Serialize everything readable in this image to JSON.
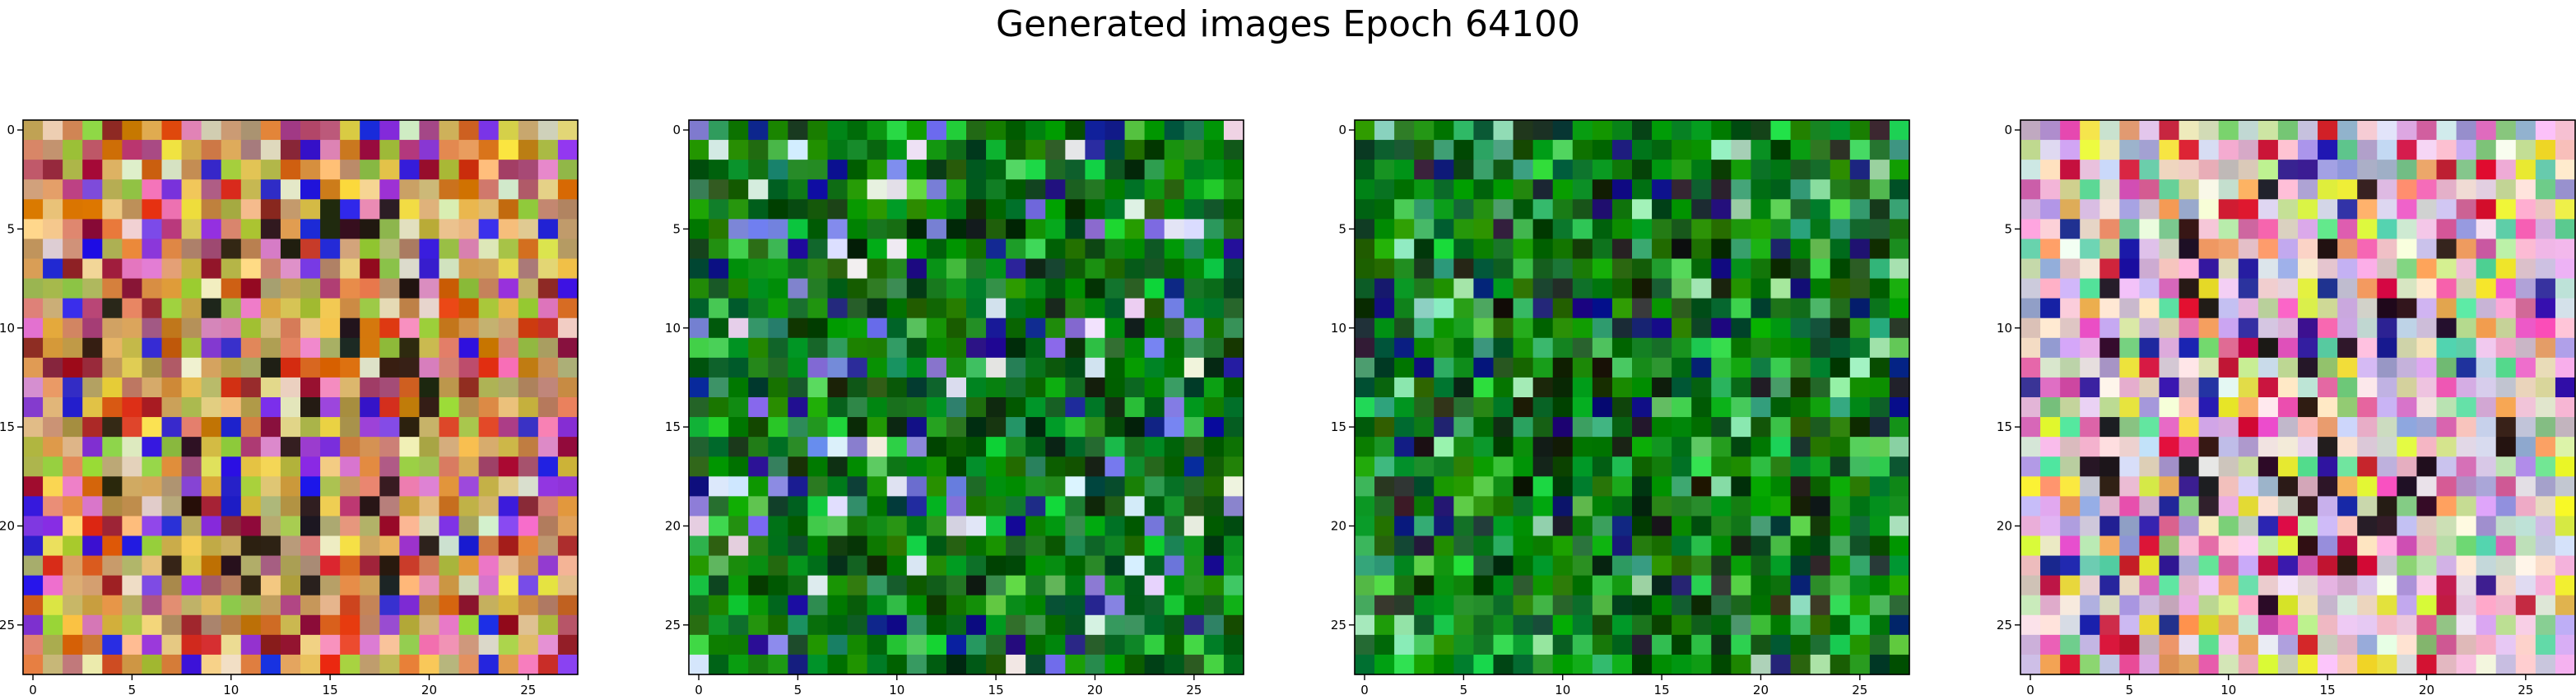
{
  "title": "Generated images Epoch 64100",
  "chart_data": {
    "type": "heatmap",
    "title": "Generated images Epoch 64100",
    "grid": false,
    "image_size": 28,
    "xticks": [
      0,
      5,
      10,
      15,
      20,
      25
    ],
    "yticks": [
      0,
      5,
      10,
      15,
      20,
      25
    ],
    "xlim": [
      -0.5,
      27.5
    ],
    "ylim": [
      27.5,
      -0.5
    ],
    "images": [
      {
        "base_color": "#c89a5a",
        "dark_color": "#1a0e08",
        "accent_colors": [
          "#e8d24a",
          "#d83a20",
          "#cc6a10",
          "#9a1a2a",
          "#e880c0",
          "#8a3ae0",
          "#2a20d8",
          "#f0c888",
          "#9ac840",
          "#e0e0c0",
          "#b04a78"
        ]
      },
      {
        "base_color": "#0a7a0a",
        "dark_color": "#001800",
        "accent_colors": [
          "#12a012",
          "#056005",
          "#1ec63a",
          "#0a4a2a",
          "#2a8a5a",
          "#1a1a90",
          "#7a7ae0",
          "#e0e0f0",
          "#50c850",
          "#033a03",
          "#206a20"
        ]
      },
      {
        "base_color": "#0e7e10",
        "dark_color": "#000a00",
        "accent_colors": [
          "#12a012",
          "#066806",
          "#2ad04a",
          "#0a4a2a",
          "#3aa870",
          "#14147a",
          "#2a2a2a",
          "#9ae0b0",
          "#50c850",
          "#043a04",
          "#1a6a30"
        ]
      },
      {
        "base_color": "#e0c8d8",
        "dark_color": "#1a0810",
        "accent_colors": [
          "#a0a0d8",
          "#e860c0",
          "#60d8a0",
          "#f0a060",
          "#d01a3a",
          "#f8f0e0",
          "#2a20a0",
          "#c8e0a0",
          "#e8e838",
          "#80c880",
          "#d85aa0"
        ]
      }
    ]
  }
}
